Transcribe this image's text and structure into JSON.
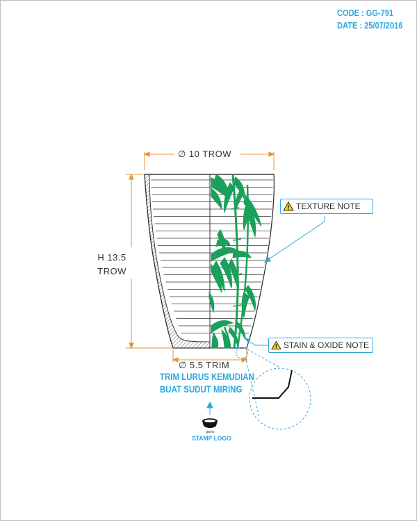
{
  "header": {
    "code": "CODE : GG-791",
    "date": "DATE : 25/07/2016"
  },
  "dimensions": {
    "top_diameter": "∅ 10 TROW",
    "height_line1": "H 13.5",
    "height_line2": "TROW",
    "bottom_diameter": "∅ 5.5 TRIM"
  },
  "notes": {
    "texture": "TEXTURE NOTE",
    "stain": "STAIN & OXIDE NOTE"
  },
  "instruction": {
    "line1": "TRIM LURUS KEMUDIAN",
    "line2": "BUAT SUDUT MIRING"
  },
  "stamp": {
    "logo_text": "gaya",
    "label": "STAMP LOGO"
  },
  "colors": {
    "accent_blue": "#29a9e0",
    "dimension_orange": "#e8913a",
    "glaze_green": "#1aa05a",
    "warning_yellow": "#f7d117"
  },
  "icons": [
    "warning-icon",
    "arrow-up-icon",
    "stamp-logo-icon",
    "bamboo-decoration"
  ]
}
